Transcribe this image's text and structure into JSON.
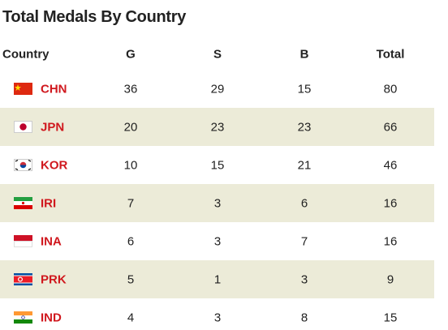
{
  "header": {
    "title": "Total Medals By Country"
  },
  "table": {
    "columns": [
      "Country",
      "G",
      "S",
      "B",
      "Total"
    ],
    "rows": [
      [
        "CHN",
        36,
        29,
        15,
        80
      ],
      [
        "JPN",
        20,
        23,
        23,
        66
      ],
      [
        "KOR",
        10,
        15,
        21,
        46
      ],
      [
        "IRI",
        7,
        3,
        6,
        16
      ],
      [
        "INA",
        6,
        3,
        7,
        16
      ],
      [
        "PRK",
        5,
        1,
        3,
        9
      ],
      [
        "IND",
        4,
        3,
        8,
        15
      ]
    ]
  }
}
